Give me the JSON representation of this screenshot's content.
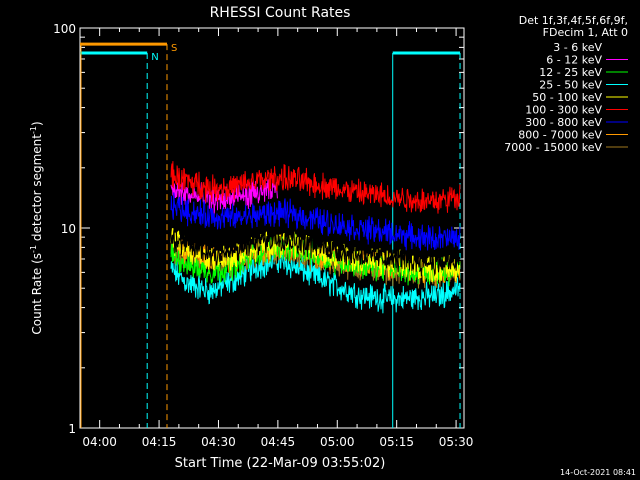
{
  "chart_data": {
    "type": "line",
    "title": "RHESSI Count Rates",
    "xlabel": "Start Time (22-Mar-09 03:55:02)",
    "ylabel_main": "Count Rate (s",
    "ylabel_sup1": "-1",
    "ylabel_mid": " detector segment",
    "ylabel_sup2": "-1",
    "ylabel_end": ")",
    "yscale": "log",
    "ylim": [
      1,
      100
    ],
    "xlim": [
      "03:55:02",
      "05:32:00"
    ],
    "x_ticks": [
      "04:00",
      "04:15",
      "04:30",
      "04:45",
      "05:00",
      "05:15",
      "05:30"
    ],
    "x_tick_minutes": [
      240,
      255,
      270,
      285,
      300,
      315,
      330
    ],
    "x_minor_step_minutes": 5,
    "y_ticks": [
      "1",
      "10",
      "100"
    ],
    "y_tick_values": [
      1,
      10,
      100
    ],
    "legend_header": [
      "Det 1f,3f,4f,5f,6f,9f,",
      "FDecim 1, Att 0"
    ],
    "legend_position": "top-right outside",
    "series": [
      {
        "name": "3 - 6 keV",
        "color": "#000000",
        "x": [
          258,
          262,
          268,
          274,
          280,
          285,
          290,
          298,
          306,
          314,
          320,
          326,
          331
        ],
        "y": [
          9.0,
          8.2,
          7.4,
          7.6,
          8.6,
          9.0,
          8.6,
          7.9,
          7.3,
          7.0,
          6.9,
          6.7,
          6.8
        ]
      },
      {
        "name": "6 - 12 keV",
        "color": "#ff00ff",
        "x": [
          258,
          262,
          268,
          274,
          280,
          285
        ],
        "y": [
          15.5,
          14.6,
          13.8,
          14.1,
          15.0,
          15.5
        ]
      },
      {
        "name": "12 - 25 keV",
        "color": "#00ff00",
        "x": [
          258,
          262,
          268,
          274,
          280,
          285,
          290,
          298,
          306,
          314,
          320,
          326,
          331
        ],
        "y": [
          7.4,
          6.6,
          6.0,
          6.5,
          7.5,
          8.2,
          7.8,
          7.0,
          6.5,
          6.3,
          6.1,
          6.0,
          6.2
        ]
      },
      {
        "name": "25 - 50 keV",
        "color": "#00ffff",
        "x": [
          258,
          262,
          268,
          274,
          280,
          285,
          290,
          298,
          306,
          314,
          320,
          326,
          331
        ],
        "y": [
          6.2,
          5.3,
          4.8,
          5.5,
          6.5,
          6.9,
          6.3,
          5.3,
          4.6,
          4.4,
          4.5,
          4.6,
          5.0
        ]
      },
      {
        "name": "50 - 100 keV",
        "color": "#ffff00",
        "x": [
          258,
          262,
          268,
          274,
          280,
          285,
          290,
          298,
          306,
          314,
          320,
          326,
          331
        ],
        "y": [
          8.8,
          7.8,
          7.0,
          7.2,
          8.0,
          8.5,
          8.2,
          7.5,
          6.9,
          6.6,
          6.4,
          6.2,
          6.4
        ]
      },
      {
        "name": "100 - 300 keV",
        "color": "#ff0000",
        "x": [
          258,
          262,
          268,
          274,
          280,
          285,
          290,
          298,
          306,
          314,
          320,
          326,
          331
        ],
        "y": [
          18.5,
          17.2,
          15.8,
          16.0,
          17.2,
          17.8,
          17.3,
          16.0,
          14.9,
          14.3,
          13.8,
          13.7,
          14.5
        ]
      },
      {
        "name": "300 - 800 keV",
        "color": "#0000ff",
        "x": [
          258,
          262,
          268,
          274,
          280,
          285,
          290,
          298,
          306,
          314,
          320,
          326,
          331
        ],
        "y": [
          13.0,
          12.2,
          11.4,
          11.2,
          11.6,
          11.9,
          11.6,
          10.6,
          9.9,
          9.4,
          9.0,
          8.8,
          8.9
        ]
      },
      {
        "name": "800 - 7000 keV",
        "color": "#ff9900",
        "x": [
          258,
          262,
          268,
          274,
          280,
          285,
          290,
          298,
          306,
          314,
          320,
          326,
          331
        ],
        "y": [
          8.4,
          7.5,
          6.8,
          6.9,
          7.6,
          8.0,
          7.7,
          7.1,
          6.6,
          6.4,
          6.2,
          6.0,
          6.1
        ]
      },
      {
        "name": "7000 - 15000 keV",
        "color": "#a0781e",
        "x": [
          258,
          262,
          268,
          274,
          280,
          285,
          290,
          298,
          306,
          314,
          320,
          326,
          331
        ],
        "y": [
          8.0,
          7.2,
          6.6,
          6.8,
          7.4,
          7.7,
          7.4,
          6.8,
          6.3,
          6.1,
          5.9,
          5.8,
          6.0
        ]
      }
    ],
    "intervals": [
      {
        "label": "N",
        "color": "#00ffff",
        "level": 75,
        "start": "03:55:02",
        "end": "04:12:00"
      },
      {
        "label": "S",
        "color": "#ff9900",
        "level": 83,
        "start": "03:55:02",
        "end": "04:17:00"
      },
      {
        "label": "",
        "color": "#00ffff",
        "level": 75,
        "start": "05:14:00",
        "end": "05:31:00"
      }
    ],
    "footer_timestamp": "14-Oct-2021 08:41"
  }
}
